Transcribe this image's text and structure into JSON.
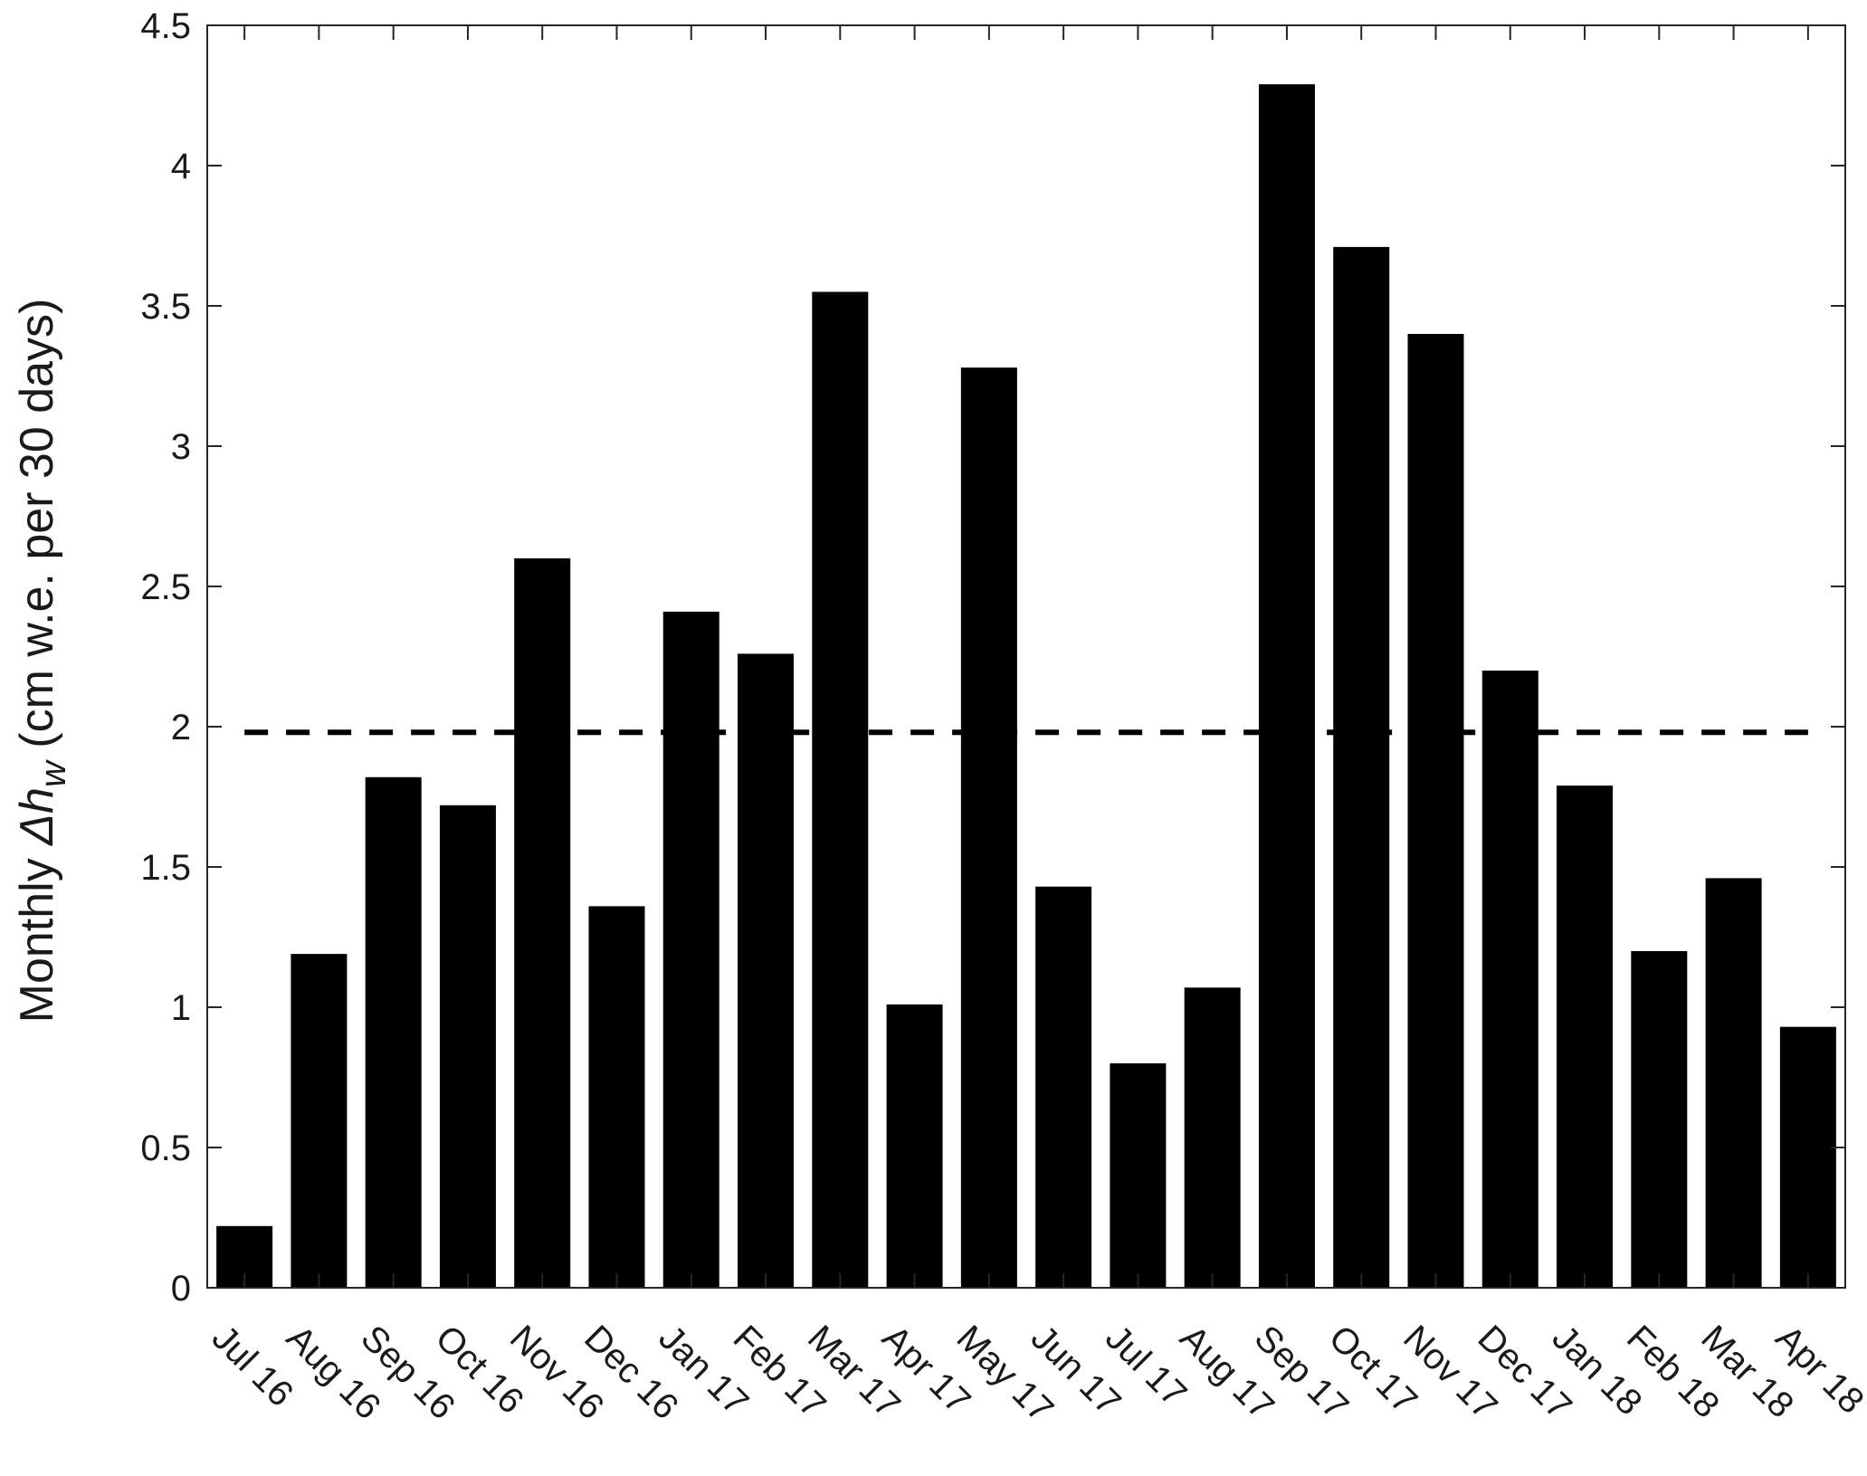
{
  "chart_data": {
    "type": "bar",
    "title": "",
    "xlabel": "",
    "ylabel": {
      "prefix": "Monthly ",
      "symbol": "Δh",
      "subscript": "w",
      "suffix": " (cm w.e. per 30 days)"
    },
    "ylim": [
      0,
      4.5
    ],
    "yticks": [
      0,
      0.5,
      1,
      1.5,
      2,
      2.5,
      3,
      3.5,
      4,
      4.5
    ],
    "ytick_labels": [
      "0",
      "0.5",
      "1",
      "1.5",
      "2",
      "2.5",
      "3",
      "3.5",
      "4",
      "4.5"
    ],
    "categories": [
      "Jul 16",
      "Aug 16",
      "Sep 16",
      "Oct 16",
      "Nov 16",
      "Dec 16",
      "Jan 17",
      "Feb 17",
      "Mar 17",
      "Apr 17",
      "May 17",
      "Jun 17",
      "Jul 17",
      "Aug 17",
      "Sep 17",
      "Oct 17",
      "Nov 17",
      "Dec 17",
      "Jan 18",
      "Feb 18",
      "Mar 18",
      "Apr 18"
    ],
    "values": [
      0.22,
      1.19,
      1.82,
      1.72,
      2.6,
      1.36,
      2.41,
      2.26,
      3.55,
      1.01,
      3.28,
      1.43,
      0.8,
      1.07,
      4.29,
      3.71,
      3.4,
      2.2,
      1.79,
      1.2,
      1.46,
      0.93
    ],
    "mean_line": {
      "value": 1.98,
      "style": "dashed"
    },
    "bar_color": "#000000",
    "grid": false,
    "legend": "none"
  }
}
